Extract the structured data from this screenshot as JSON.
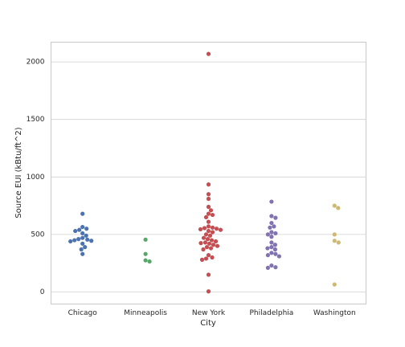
{
  "chart_data": {
    "type": "swarm",
    "xlabel": "City",
    "ylabel": "Source EUI (kBtu/ft^2)",
    "categories": [
      "Chicago",
      "Minneapolis",
      "New York",
      "Philadelphia",
      "Washington"
    ],
    "colors": [
      "#4c72b0",
      "#55a868",
      "#c44e52",
      "#8172b2",
      "#ccb974"
    ],
    "values": [
      [
        680,
        565,
        550,
        540,
        530,
        510,
        490,
        470,
        460,
        455,
        450,
        445,
        440,
        420,
        390,
        370,
        330
      ],
      [
        455,
        330,
        275,
        265
      ],
      [
        2070,
        935,
        850,
        810,
        740,
        710,
        680,
        670,
        650,
        610,
        570,
        560,
        555,
        550,
        545,
        540,
        530,
        520,
        500,
        490,
        470,
        460,
        450,
        440,
        430,
        425,
        420,
        410,
        400,
        390,
        380,
        370,
        320,
        300,
        290,
        280,
        150,
        5
      ],
      [
        785,
        660,
        645,
        600,
        570,
        560,
        520,
        510,
        500,
        480,
        430,
        410,
        390,
        380,
        370,
        340,
        330,
        320,
        310,
        230,
        215,
        210
      ],
      [
        750,
        730,
        500,
        445,
        430,
        65
      ]
    ],
    "ylim": [
      -105,
      2172
    ],
    "yticks": [
      0,
      500,
      1000,
      1500,
      2000
    ],
    "grid": true
  }
}
